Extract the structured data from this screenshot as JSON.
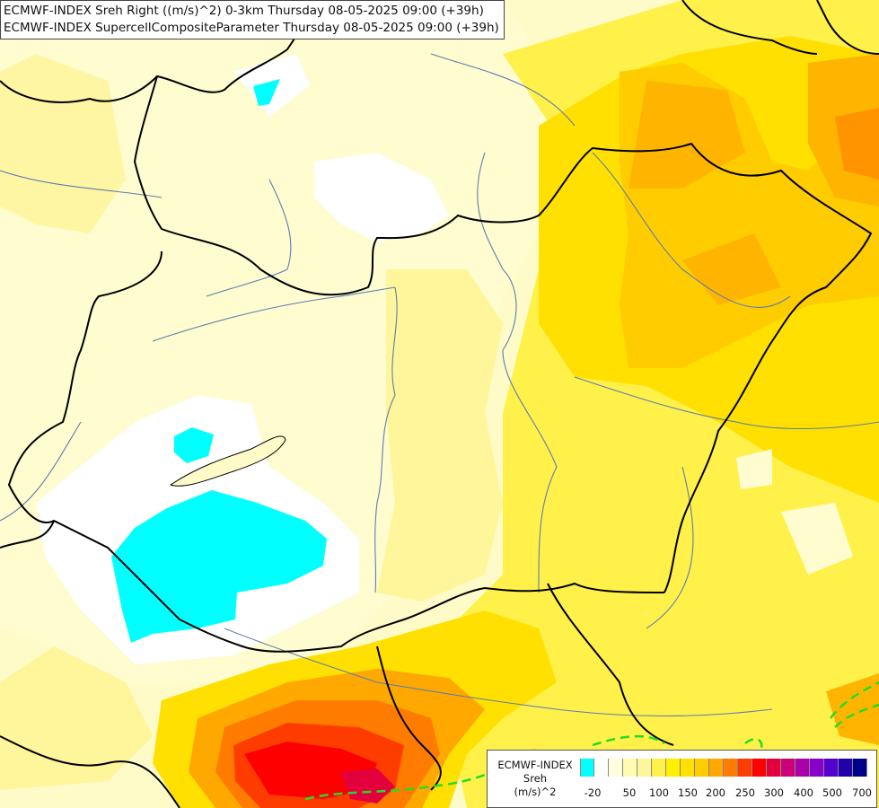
{
  "titles": {
    "line1": "ECMWF-INDEX Sreh Right ((m/s)^2) 0-3km Thursday 08-05-2025 09:00 (+39h)",
    "line2": "ECMWF-INDEX SupercellCompositeParameter Thursday 08-05-2025 09:00 (+39h)"
  },
  "legend": {
    "model": "ECMWF-INDEX",
    "variable": "Sreh",
    "unit": "(m/s)^2",
    "colors": [
      "#00ffff",
      "#ffffff",
      "#fffde0",
      "#fffbb0",
      "#fff59a",
      "#fff04a",
      "#fff000",
      "#ffe000",
      "#ffcc00",
      "#ffa800",
      "#ff7c00",
      "#ff3c00",
      "#ff0000",
      "#e4003c",
      "#cc0078",
      "#aa00aa",
      "#8800cc",
      "#5500cc",
      "#2200aa",
      "#000088"
    ],
    "ticks": [
      "-20",
      "50",
      "100",
      "150",
      "200",
      "250",
      "300",
      "400",
      "500",
      "700"
    ]
  },
  "map": {
    "background_color": "#fffbc8",
    "scp_contour_color": "#22dd22",
    "border_color": "#000000",
    "river_color": "#5a7fb0"
  }
}
